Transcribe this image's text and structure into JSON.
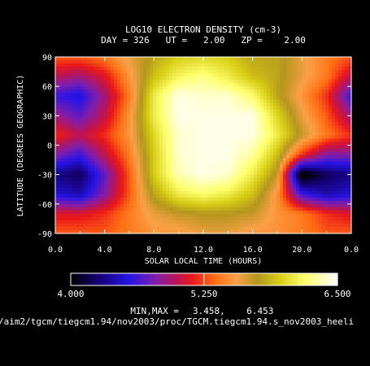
{
  "chart_data": {
    "type": "heatmap",
    "title": "LOG10 ELECTRON DENSITY (cm-3)",
    "subtitle": "DAY = 326   UT =   2.00   ZP =    2.00",
    "xlabel": "SOLAR LOCAL TIME (HOURS)",
    "ylabel": "LATITUDE (DEGREES GEOGRAPHIC)",
    "xlim": [
      0,
      24
    ],
    "ylim": [
      -90,
      90
    ],
    "x_ticks": [
      "0.0",
      "4.0",
      "8.0",
      "12.0",
      "16.0",
      "20.0",
      "0.0"
    ],
    "y_ticks": [
      "90",
      "60",
      "30",
      "0",
      "-30",
      "-60",
      "-90"
    ],
    "x_grid": [
      0,
      2,
      4,
      6,
      8,
      10,
      12,
      14,
      16,
      18,
      20,
      22,
      24
    ],
    "y_grid": [
      90,
      70,
      50,
      30,
      10,
      -10,
      -30,
      -50,
      -70,
      -90
    ],
    "values": [
      [
        5.3,
        5.3,
        5.4,
        5.6,
        5.8,
        5.95,
        6.0,
        5.95,
        5.8,
        5.8,
        5.6,
        5.4,
        5.3
      ],
      [
        5.0,
        4.9,
        5.1,
        5.5,
        5.9,
        6.15,
        6.25,
        6.1,
        5.9,
        5.8,
        5.6,
        5.4,
        5.0
      ],
      [
        4.6,
        4.5,
        4.9,
        5.4,
        6.1,
        6.45,
        6.4,
        6.4,
        6.2,
        5.8,
        5.5,
        5.2,
        4.6
      ],
      [
        4.9,
        4.7,
        5.0,
        5.5,
        6.1,
        6.45,
        6.45,
        6.45,
        6.45,
        6.0,
        5.6,
        5.3,
        4.9
      ],
      [
        5.2,
        5.0,
        5.2,
        5.5,
        6.0,
        6.4,
        6.45,
        6.45,
        6.45,
        6.1,
        5.7,
        5.4,
        5.2
      ],
      [
        4.8,
        4.6,
        5.0,
        5.4,
        5.95,
        6.4,
        6.45,
        6.45,
        6.3,
        5.9,
        5.2,
        4.8,
        4.8
      ],
      [
        4.3,
        4.2,
        4.7,
        5.3,
        5.95,
        6.35,
        6.45,
        6.4,
        6.1,
        5.7,
        3.9,
        4.2,
        4.3
      ],
      [
        4.5,
        4.4,
        4.8,
        5.3,
        5.8,
        6.1,
        6.2,
        6.1,
        5.9,
        5.5,
        4.6,
        4.4,
        4.5
      ],
      [
        5.1,
        5.1,
        5.2,
        5.4,
        5.6,
        5.7,
        5.75,
        5.75,
        5.7,
        5.5,
        5.4,
        5.2,
        5.1
      ],
      [
        5.3,
        5.3,
        5.3,
        5.4,
        5.5,
        5.5,
        5.6,
        5.6,
        5.5,
        5.5,
        5.4,
        5.3,
        5.3
      ]
    ],
    "colorbar": {
      "min": 4.0,
      "max": 6.5,
      "labels": [
        "4.000",
        "5.250",
        "6.500"
      ]
    },
    "minmax_label": "MIN,MAX =",
    "minmax_values": "3.458,    6.453",
    "footer": "/aim2/tgcm/tiegcm1.94/nov2003/proc/TGCM.tiegcm1.94.s_nov2003_heeli"
  }
}
